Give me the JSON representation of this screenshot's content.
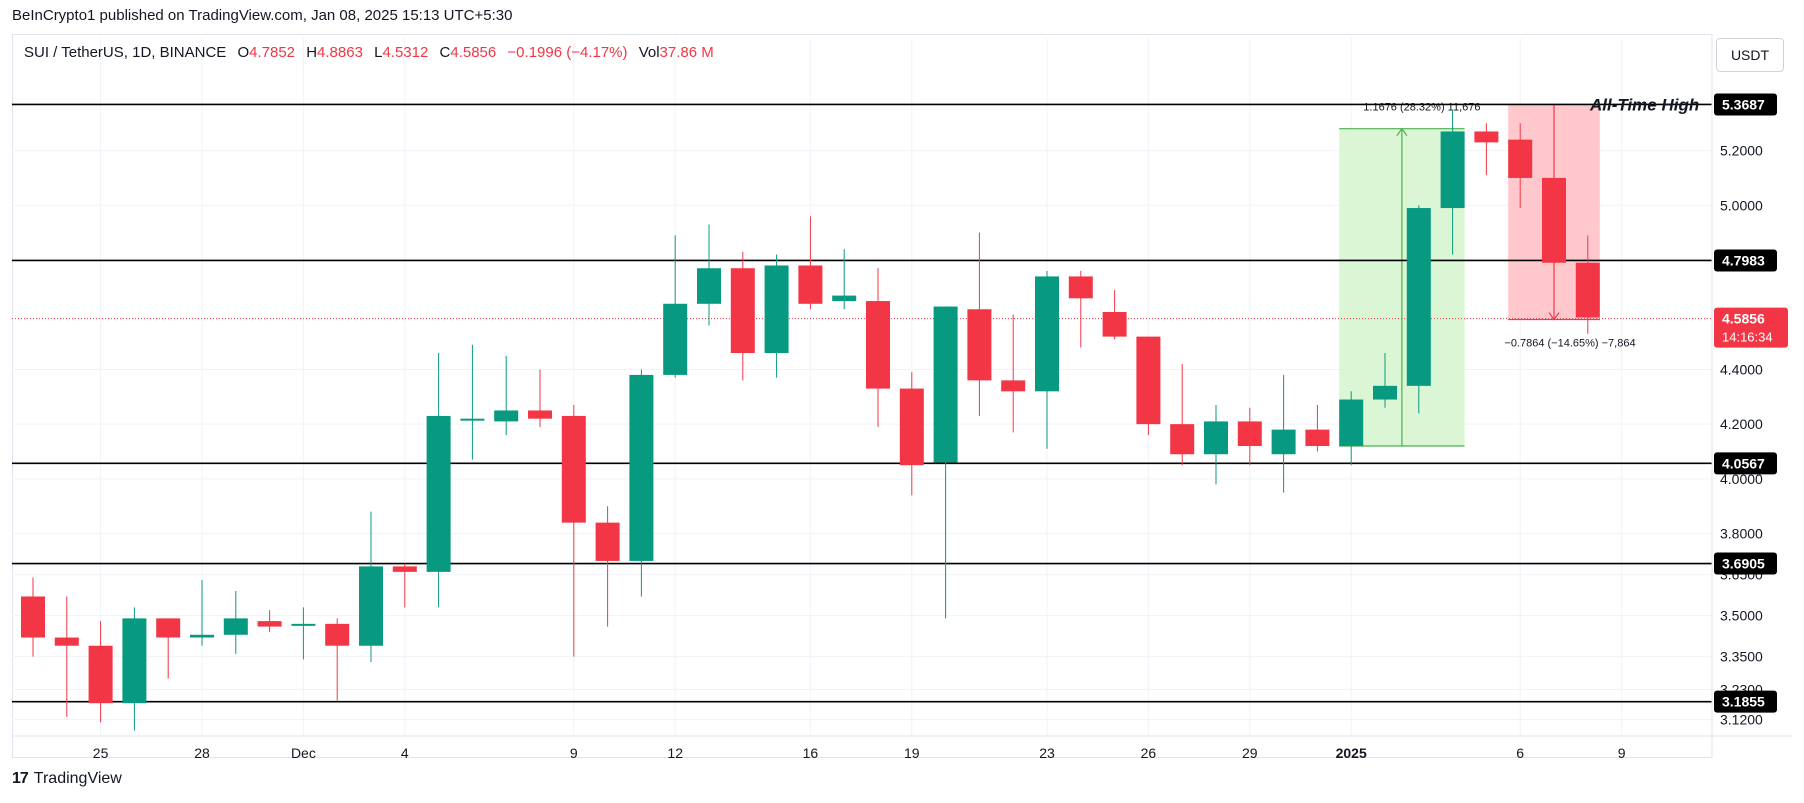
{
  "publisher_line": "BeInCrypto1 published on TradingView.com, Jan 08, 2025 15:13 UTC+5:30",
  "legend": {
    "symbol": "SUI / TetherUS, 1D, BINANCE",
    "o_label": "O",
    "o_value": "4.7852",
    "h_label": "H",
    "h_value": "4.8863",
    "l_label": "L",
    "l_value": "4.5312",
    "c_label": "C",
    "c_value": "4.5856",
    "change": "−0.1996 (−4.17%)",
    "vol_label": "Vol",
    "vol_value": "37.86 M"
  },
  "currency_button": "USDT",
  "footer": {
    "logo_glyph": "17",
    "brand": "TradingView"
  },
  "colors": {
    "up": "#089981",
    "down": "#f23645",
    "level_line": "#000000",
    "current_price": "#f23645",
    "long_zone": "#d6f5cf",
    "short_zone": "#ffc2c6"
  },
  "chart_data": {
    "type": "candlestick",
    "symbol": "SUI / TetherUS",
    "interval": "1D",
    "exchange": "BINANCE",
    "ylim": [
      3.06,
      5.48
    ],
    "y_ticks": [
      "5.2000",
      "5.0000",
      "4.4000",
      "4.2000",
      "4.0000",
      "3.8000",
      "3.6500",
      "3.5000",
      "3.3500",
      "3.2300",
      "3.1200"
    ],
    "x_ticks": [
      {
        "i": 2,
        "label": "25"
      },
      {
        "i": 5,
        "label": "28"
      },
      {
        "i": 8,
        "label": "Dec"
      },
      {
        "i": 11,
        "label": "4"
      },
      {
        "i": 16,
        "label": "9"
      },
      {
        "i": 19,
        "label": "12"
      },
      {
        "i": 23,
        "label": "16"
      },
      {
        "i": 26,
        "label": "19"
      },
      {
        "i": 30,
        "label": "23"
      },
      {
        "i": 33,
        "label": "26"
      },
      {
        "i": 36,
        "label": "29"
      },
      {
        "i": 39,
        "label": "2025"
      },
      {
        "i": 44,
        "label": "6"
      },
      {
        "i": 47,
        "label": "9"
      }
    ],
    "candles": [
      {
        "o": 3.57,
        "h": 3.64,
        "l": 3.35,
        "c": 3.42
      },
      {
        "o": 3.42,
        "h": 3.57,
        "l": 3.13,
        "c": 3.39
      },
      {
        "o": 3.39,
        "h": 3.48,
        "l": 3.11,
        "c": 3.18
      },
      {
        "o": 3.18,
        "h": 3.53,
        "l": 3.08,
        "c": 3.49
      },
      {
        "o": 3.49,
        "h": 3.49,
        "l": 3.27,
        "c": 3.42
      },
      {
        "o": 3.42,
        "h": 3.63,
        "l": 3.39,
        "c": 3.43
      },
      {
        "o": 3.43,
        "h": 3.59,
        "l": 3.36,
        "c": 3.49
      },
      {
        "o": 3.48,
        "h": 3.52,
        "l": 3.44,
        "c": 3.46
      },
      {
        "o": 3.47,
        "h": 3.53,
        "l": 3.34,
        "c": 3.47
      },
      {
        "o": 3.47,
        "h": 3.49,
        "l": 3.19,
        "c": 3.39
      },
      {
        "o": 3.39,
        "h": 3.88,
        "l": 3.33,
        "c": 3.68
      },
      {
        "o": 3.68,
        "h": 3.69,
        "l": 3.53,
        "c": 3.66
      },
      {
        "o": 3.66,
        "h": 4.46,
        "l": 3.53,
        "c": 4.23
      },
      {
        "o": 4.22,
        "h": 4.49,
        "l": 4.07,
        "c": 4.22
      },
      {
        "o": 4.21,
        "h": 4.45,
        "l": 4.16,
        "c": 4.25
      },
      {
        "o": 4.25,
        "h": 4.4,
        "l": 4.19,
        "c": 4.22
      },
      {
        "o": 4.23,
        "h": 4.27,
        "l": 3.35,
        "c": 3.84
      },
      {
        "o": 3.84,
        "h": 3.9,
        "l": 3.46,
        "c": 3.7
      },
      {
        "o": 3.7,
        "h": 4.4,
        "l": 3.57,
        "c": 4.38
      },
      {
        "o": 4.38,
        "h": 4.89,
        "l": 4.37,
        "c": 4.64
      },
      {
        "o": 4.64,
        "h": 4.93,
        "l": 4.56,
        "c": 4.77
      },
      {
        "o": 4.77,
        "h": 4.83,
        "l": 4.36,
        "c": 4.46
      },
      {
        "o": 4.46,
        "h": 4.82,
        "l": 4.37,
        "c": 4.78
      },
      {
        "o": 4.78,
        "h": 4.96,
        "l": 4.62,
        "c": 4.64
      },
      {
        "o": 4.65,
        "h": 4.84,
        "l": 4.62,
        "c": 4.67
      },
      {
        "o": 4.65,
        "h": 4.77,
        "l": 4.19,
        "c": 4.33
      },
      {
        "o": 4.33,
        "h": 4.39,
        "l": 3.94,
        "c": 4.05
      },
      {
        "o": 4.06,
        "h": 4.63,
        "l": 3.49,
        "c": 4.63
      },
      {
        "o": 4.62,
        "h": 4.9,
        "l": 4.23,
        "c": 4.36
      },
      {
        "o": 4.36,
        "h": 4.6,
        "l": 4.17,
        "c": 4.32
      },
      {
        "o": 4.32,
        "h": 4.76,
        "l": 4.11,
        "c": 4.74
      },
      {
        "o": 4.74,
        "h": 4.76,
        "l": 4.48,
        "c": 4.66
      },
      {
        "o": 4.61,
        "h": 4.69,
        "l": 4.51,
        "c": 4.52
      },
      {
        "o": 4.52,
        "h": 4.52,
        "l": 4.16,
        "c": 4.2
      },
      {
        "o": 4.2,
        "h": 4.42,
        "l": 4.05,
        "c": 4.09
      },
      {
        "o": 4.09,
        "h": 4.27,
        "l": 3.98,
        "c": 4.21
      },
      {
        "o": 4.21,
        "h": 4.26,
        "l": 4.05,
        "c": 4.12
      },
      {
        "o": 4.09,
        "h": 4.38,
        "l": 3.95,
        "c": 4.18
      },
      {
        "o": 4.18,
        "h": 4.27,
        "l": 4.1,
        "c": 4.12
      },
      {
        "o": 4.12,
        "h": 4.32,
        "l": 4.05,
        "c": 4.29
      },
      {
        "o": 4.29,
        "h": 4.46,
        "l": 4.26,
        "c": 4.34
      },
      {
        "o": 4.34,
        "h": 5.0,
        "l": 4.24,
        "c": 4.99
      },
      {
        "o": 4.99,
        "h": 5.35,
        "l": 4.82,
        "c": 5.27
      },
      {
        "o": 5.27,
        "h": 5.3,
        "l": 5.11,
        "c": 5.23
      },
      {
        "o": 5.24,
        "h": 5.3,
        "l": 4.99,
        "c": 5.1
      },
      {
        "o": 5.1,
        "h": 5.36,
        "l": 4.77,
        "c": 4.79
      },
      {
        "o": 4.79,
        "h": 4.89,
        "l": 4.53,
        "c": 4.59
      }
    ],
    "levels": [
      {
        "value": 5.3687,
        "label": "5.3687"
      },
      {
        "value": 4.7983,
        "label": "4.7983"
      },
      {
        "value": 4.0567,
        "label": "4.0567"
      },
      {
        "value": 3.6905,
        "label": "3.6905"
      },
      {
        "value": 3.1855,
        "label": "3.1855"
      }
    ],
    "current_price": {
      "value": 4.5856,
      "label": "4.5856",
      "countdown": "14:16:34"
    },
    "all_time_high_label": "All-Time High",
    "measurements": [
      {
        "kind": "long",
        "from_i": 39,
        "to_i": 42,
        "from_price": 4.12,
        "to_price": 5.28,
        "label": "1.1676 (28.32%) 11,676"
      },
      {
        "kind": "short",
        "from_i": 44,
        "to_i": 46,
        "from_price": 5.3687,
        "to_price": 4.5823,
        "label": "−0.7864 (−14.65%) −7,864"
      }
    ]
  }
}
